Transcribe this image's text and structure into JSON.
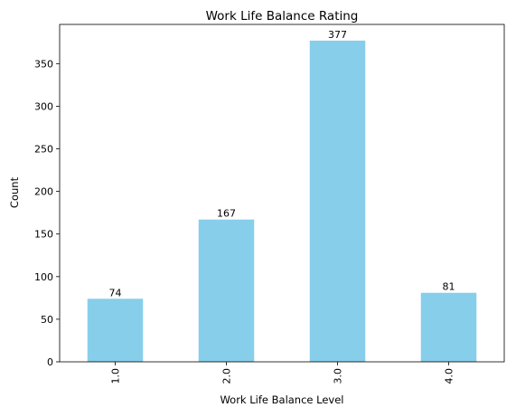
{
  "chart_data": {
    "type": "bar",
    "title": "Work Life Balance Rating",
    "xlabel": "Work Life Balance Level",
    "ylabel": "Count",
    "categories": [
      "1.0",
      "2.0",
      "3.0",
      "4.0"
    ],
    "values": [
      74,
      167,
      377,
      81
    ],
    "data_labels": [
      "74",
      "167",
      "377",
      "81"
    ],
    "ylim": [
      0,
      396
    ],
    "yticks": [
      0,
      50,
      100,
      150,
      200,
      250,
      300,
      350
    ],
    "ytick_labels": [
      "0",
      "50",
      "100",
      "150",
      "200",
      "250",
      "300",
      "350"
    ],
    "bar_color": "#87ceeb",
    "grid": false,
    "legend": "none",
    "xtick_rotation": "vertical"
  }
}
